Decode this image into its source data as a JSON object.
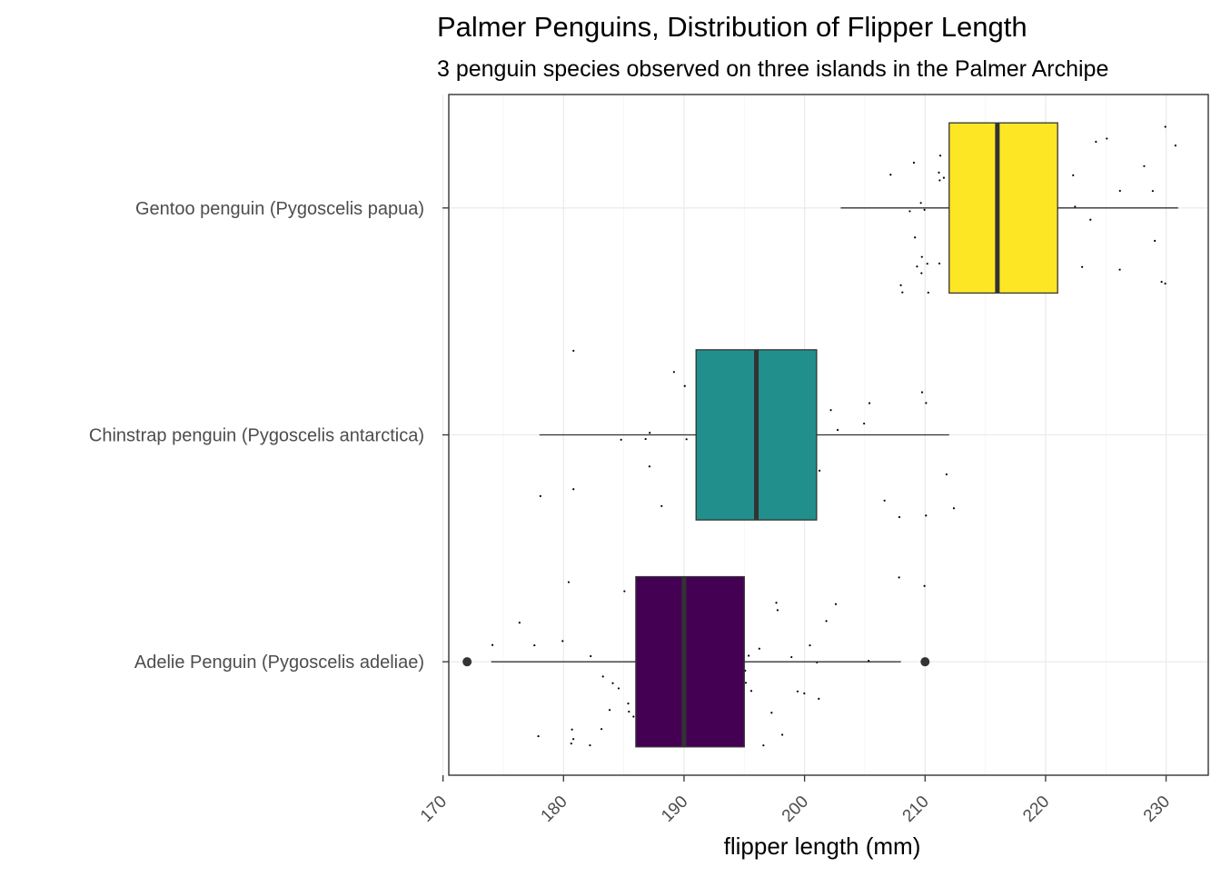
{
  "chart_data": {
    "type": "boxplot",
    "orientation": "horizontal",
    "title": "Palmer Penguins, Distribution of Flipper Length",
    "subtitle": "3 penguin species observed on three islands in the Palmer Archipe",
    "xlabel": "flipper length (mm)",
    "ylabel": "",
    "xlim": [
      169.5,
      233.5
    ],
    "x_ticks": [
      170,
      180,
      190,
      200,
      210,
      220,
      230
    ],
    "grid": true,
    "legend": "none",
    "series": [
      {
        "name": "Gentoo penguin (Pygoscelis papua)",
        "color": "#FDE725",
        "whisker_low": 203,
        "q1": 212,
        "median": 216,
        "q3": 221,
        "whisker_high": 231,
        "outliers": []
      },
      {
        "name": "Chinstrap penguin (Pygoscelis antarctica)",
        "color": "#21908C",
        "whisker_low": 178,
        "q1": 191,
        "median": 196,
        "q3": 201,
        "whisker_high": 212,
        "outliers": []
      },
      {
        "name": "Adelie Penguin (Pygoscelis adeliae)",
        "color": "#440154",
        "whisker_low": 174,
        "q1": 186,
        "median": 190,
        "q3": 195,
        "whisker_high": 208,
        "outliers": [
          172,
          210
        ]
      }
    ],
    "jitter_points": [
      {
        "species": 0,
        "values": [
          207,
          208,
          209,
          210,
          210,
          211,
          211,
          209,
          210,
          209,
          210,
          212,
          213,
          214,
          215,
          216,
          217,
          218,
          219,
          220,
          221,
          222,
          223,
          224,
          225,
          226,
          228,
          229,
          230,
          230,
          231,
          212,
          214,
          215,
          216,
          217,
          218,
          220,
          210,
          211,
          208,
          209,
          213,
          215,
          217,
          219,
          221,
          222,
          224,
          226,
          229,
          230,
          214,
          216,
          218,
          219,
          215,
          212,
          211,
          210
        ]
      },
      {
        "species": 1,
        "values": [
          178,
          181,
          185,
          187,
          187,
          188,
          189,
          190,
          191,
          192,
          193,
          194,
          195,
          195,
          196,
          196,
          197,
          197,
          198,
          199,
          200,
          201,
          201,
          202,
          203,
          205,
          207,
          208,
          210,
          210,
          212,
          181,
          187,
          190,
          192,
          193,
          195,
          196,
          197,
          198,
          200,
          205,
          210,
          212
        ]
      },
      {
        "species": 2,
        "values": [
          174,
          176,
          178,
          178,
          180,
          180,
          181,
          181,
          182,
          182,
          183,
          184,
          184,
          185,
          185,
          185,
          186,
          186,
          187,
          187,
          187,
          188,
          188,
          189,
          189,
          190,
          190,
          190,
          191,
          191,
          191,
          192,
          192,
          193,
          193,
          194,
          194,
          195,
          195,
          195,
          196,
          197,
          197,
          198,
          198,
          199,
          199,
          200,
          201,
          201,
          202,
          203,
          205,
          208,
          181,
          183,
          185,
          187,
          189,
          190,
          192,
          193,
          195,
          196,
          198,
          200,
          210
        ]
      }
    ]
  }
}
